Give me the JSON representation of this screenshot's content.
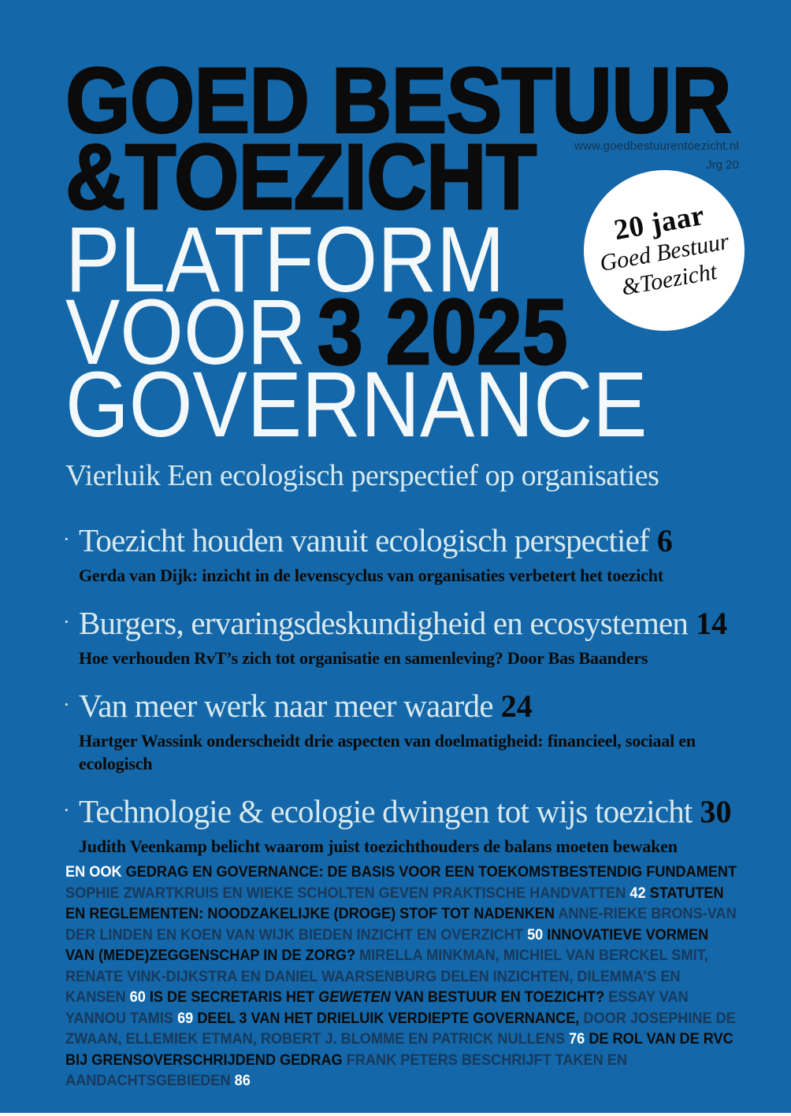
{
  "page": {
    "title_line1": "GOED BESTUUR",
    "title_line2": "&TOEZICHT",
    "tagline_line1": "PLATFORM",
    "tagline_line2_prefix": "VOOR",
    "issue_number": "3 2025",
    "tagline_line3": "GOVERNANCE",
    "website": "www.goedbestuurentoezicht.nl",
    "volume": "Jrg 20"
  },
  "colors": {
    "background": "#1467a8",
    "black": "#0b0b0b",
    "pale_blue": "#d7e9ef",
    "navy": "#17395c",
    "white": "#ffffff"
  },
  "badge": {
    "line1": "20 jaar",
    "line2": "Goed Bestuur",
    "line3": "&Toezicht"
  },
  "toc": {
    "bullet_glyph": "·",
    "section_title": "Vierluik Een ecologisch perspectief op organisaties",
    "items": [
      {
        "title": "Toezicht houden vanuit ecologisch perspectief",
        "page": "6",
        "description": "Gerda van Dijk: inzicht in de levenscyclus van organisaties verbetert het toezicht"
      },
      {
        "title": "Burgers, ervaringsdeskundigheid en ecosystemen",
        "page": "14",
        "description": "Hoe verhouden RvT’s zich tot organisatie en samenleving? Door Bas Baanders"
      },
      {
        "title": "Van meer werk naar meer waarde",
        "page": "24",
        "description": "Hartger Wassink onderscheidt drie aspecten van doelmatigheid: financieel, sociaal en ecologisch"
      },
      {
        "title": "Technologie & ecologie dwingen tot wijs toezicht",
        "page": "30",
        "description": "Judith Veenkamp belicht waarom juist toezichthouders de balans moeten bewaken"
      }
    ]
  },
  "en_ook": {
    "label": "EN OOK",
    "segments": [
      {
        "text": "GEDRAG EN GOVERNANCE: DE BASIS VOOR EEN TOEKOMSTBESTENDIG FUNDAMENT",
        "style": "title"
      },
      {
        "text": "SOPHIE ZWARTKRUIS EN WIEKE SCHOLTEN GEVEN PRAKTISCHE HANDVATTEN",
        "style": "author"
      },
      {
        "text": "42",
        "style": "page"
      },
      {
        "text": "STATUTEN EN REGLEMENTEN: NOODZAKELIJKE (DROGE) STOF TOT NADENKEN",
        "style": "title"
      },
      {
        "text": "ANNE-RIEKE BRONS-VAN DER LINDEN EN KOEN VAN WIJK BIEDEN INZICHT EN OVERZICHT",
        "style": "author"
      },
      {
        "text": "50",
        "style": "page"
      },
      {
        "text": "INNOVATIEVE VORMEN VAN (MEDE)ZEGGENSCHAP IN DE ZORG?",
        "style": "title"
      },
      {
        "text": "MIRELLA MINKMAN, MICHIEL VAN BERCKEL SMIT, RENATE VINK-DIJKSTRA EN DANIEL WAARSENBURG DELEN INZICHTEN, DILEMMA’S EN KANSEN",
        "style": "author"
      },
      {
        "text": "60",
        "style": "page"
      },
      {
        "text": "IS DE SECRETARIS HET",
        "style": "title"
      },
      {
        "text": "GEWETEN",
        "style": "title-italic"
      },
      {
        "text": "VAN BESTUUR EN TOEZICHT?",
        "style": "title"
      },
      {
        "text": "ESSAY VAN YANNOU TAMIS",
        "style": "author"
      },
      {
        "text": "69",
        "style": "page"
      },
      {
        "text": "DEEL 3 VAN HET DRIELUIK VERDIEPTE GOVERNANCE,",
        "style": "title"
      },
      {
        "text": "DOOR JOSEPHINE DE ZWAAN, ELLEMIEK ETMAN, ROBERT J. BLOMME EN PATRICK NULLENS",
        "style": "author"
      },
      {
        "text": "76",
        "style": "page"
      },
      {
        "text": "DE ROL VAN DE RVC BIJ GRENSOVERSCHRIJDEND GEDRAG",
        "style": "title"
      },
      {
        "text": "FRANK PETERS BESCHRIJFT TAKEN EN AANDACHTSGEBIEDEN",
        "style": "author"
      },
      {
        "text": "86",
        "style": "page"
      }
    ]
  }
}
